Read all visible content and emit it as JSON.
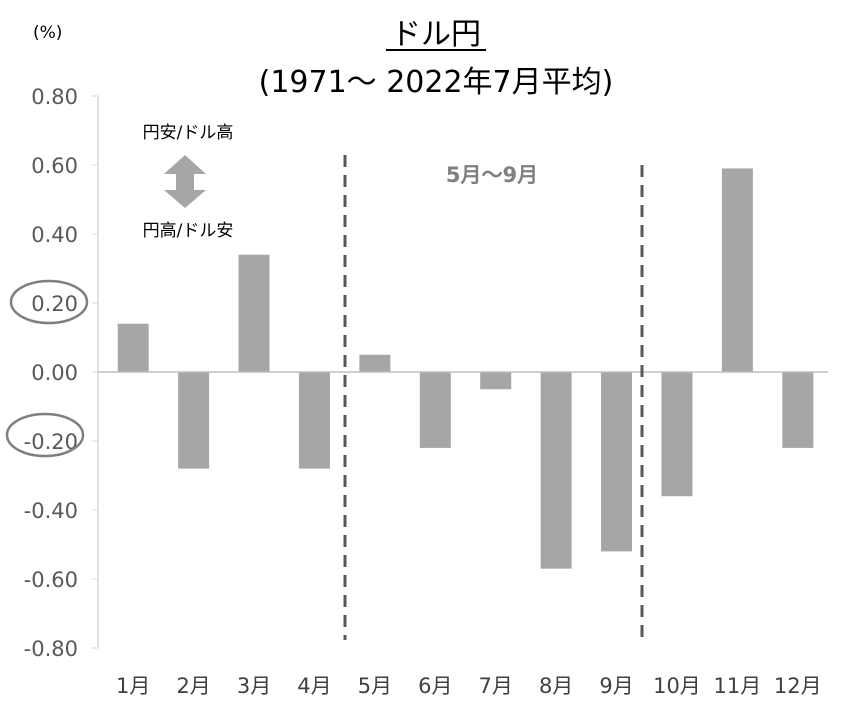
{
  "chart_data": {
    "type": "bar",
    "title": "ドル円",
    "subtitle": "(1971～ 2022年7月平均)",
    "ylabel": "(%)",
    "xlabel": "",
    "categories": [
      "1月",
      "2月",
      "3月",
      "4月",
      "5月",
      "6月",
      "7月",
      "8月",
      "9月",
      "10月",
      "11月",
      "12月"
    ],
    "values": [
      0.14,
      -0.28,
      0.34,
      -0.28,
      0.05,
      -0.22,
      -0.05,
      -0.57,
      -0.52,
      -0.36,
      0.59,
      -0.22
    ],
    "ylim": [
      -0.8,
      0.8
    ],
    "yticks": [
      "0.80",
      "0.60",
      "0.40",
      "0.20",
      "0.00",
      "-0.20",
      "-0.40",
      "-0.60",
      "-0.80"
    ],
    "grid": false,
    "bar_color": "#a6a6a6",
    "annotations": {
      "up_label": "円安/ドル高",
      "down_label": "円高/ドル安",
      "band_label": "5月～9月",
      "band_start_month": 5,
      "band_end_month": 9,
      "circled_ticks": [
        "0.20",
        "-0.20"
      ]
    }
  }
}
